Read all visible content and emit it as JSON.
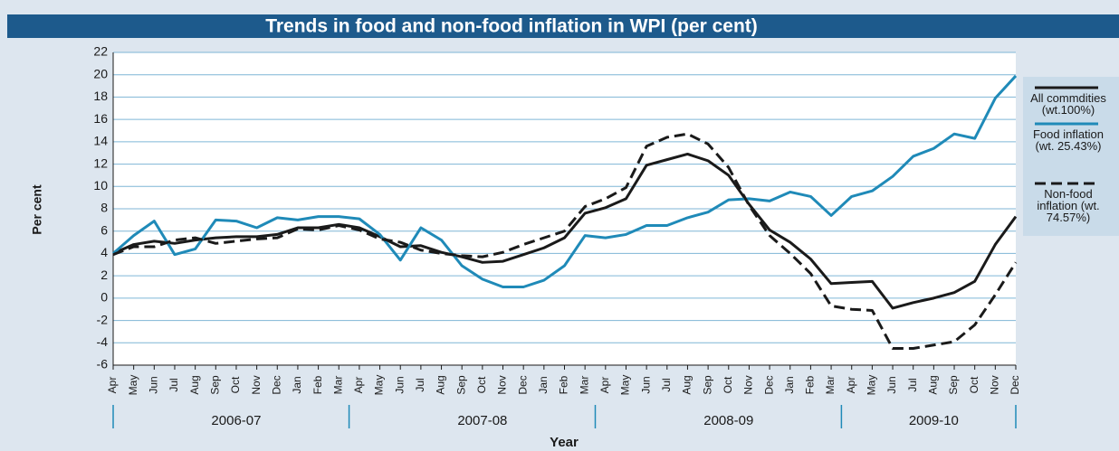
{
  "chart_data": {
    "type": "line",
    "title": "Trends in food and non-food inflation in WPI (per cent)",
    "y_label": "Per cent",
    "x_label": "Year",
    "categories": [
      "Apr",
      "May",
      "Jun",
      "Jul",
      "Aug",
      "Sep",
      "Oct",
      "Nov",
      "Dec",
      "Jan",
      "Feb",
      "Mar",
      "Apr",
      "May",
      "Jun",
      "Jul",
      "Aug",
      "Sep",
      "Oct",
      "Nov",
      "Dec",
      "Jan",
      "Feb",
      "Mar",
      "Apr",
      "May",
      "Jun",
      "Jul",
      "Aug",
      "Sep",
      "Oct",
      "Nov",
      "Dec",
      "Jan",
      "Feb",
      "Mar",
      "Apr",
      "May",
      "Jun",
      "Jul",
      "Aug",
      "Sep",
      "Oct",
      "Nov",
      "Dec"
    ],
    "category_groups": [
      "2006-07",
      "2007-08",
      "2008-09",
      "2009-10"
    ],
    "ylim": [
      -6,
      22
    ],
    "yticks": [
      -6,
      -4,
      -2,
      0,
      2,
      4,
      6,
      8,
      10,
      12,
      14,
      16,
      18,
      20,
      22
    ],
    "grid": true,
    "legend": "right",
    "series": [
      {
        "name": "All commdities (wt.100%)",
        "color": "#1a1a1a",
        "dash": false,
        "values": [
          4.0,
          4.8,
          5.1,
          4.9,
          5.2,
          5.4,
          5.5,
          5.5,
          5.7,
          6.3,
          6.3,
          6.6,
          6.3,
          5.5,
          4.6,
          4.7,
          4.1,
          3.7,
          3.2,
          3.3,
          3.9,
          4.5,
          5.4,
          7.6,
          8.1,
          8.9,
          11.9,
          12.4,
          12.9,
          12.3,
          11.0,
          8.4,
          6.1,
          5.0,
          3.5,
          1.3,
          1.4,
          1.5,
          -0.9,
          -0.4,
          0.0,
          0.5,
          1.5,
          4.8,
          7.3
        ]
      },
      {
        "name": "Food inflation (wt. 25.43%)",
        "color": "#1f8ab8",
        "dash": false,
        "values": [
          4.0,
          5.6,
          6.9,
          3.9,
          4.4,
          7.0,
          6.9,
          6.3,
          7.2,
          7.0,
          7.3,
          7.3,
          7.1,
          5.7,
          3.4,
          6.3,
          5.2,
          2.9,
          1.7,
          1.0,
          1.0,
          1.6,
          2.9,
          5.6,
          5.4,
          5.7,
          6.5,
          6.5,
          7.2,
          7.7,
          8.8,
          8.9,
          8.7,
          9.5,
          9.1,
          7.4,
          9.1,
          9.6,
          10.9,
          12.7,
          13.4,
          14.7,
          14.3,
          17.9,
          19.9
        ]
      },
      {
        "name": "Non-food inflation (wt. 74.57%)",
        "color": "#1a1a1a",
        "dash": true,
        "values": [
          3.9,
          4.6,
          4.6,
          5.2,
          5.4,
          4.9,
          5.1,
          5.3,
          5.4,
          6.2,
          6.1,
          6.5,
          6.1,
          5.3,
          5.0,
          4.3,
          4.0,
          3.8,
          3.7,
          4.1,
          4.8,
          5.4,
          6.0,
          8.2,
          8.9,
          9.9,
          13.6,
          14.4,
          14.7,
          13.8,
          11.7,
          8.3,
          5.6,
          4.0,
          2.2,
          -0.7,
          -1.0,
          -1.1,
          -4.5,
          -4.5,
          -4.2,
          -3.9,
          -2.4,
          0.3,
          3.2
        ]
      }
    ]
  }
}
